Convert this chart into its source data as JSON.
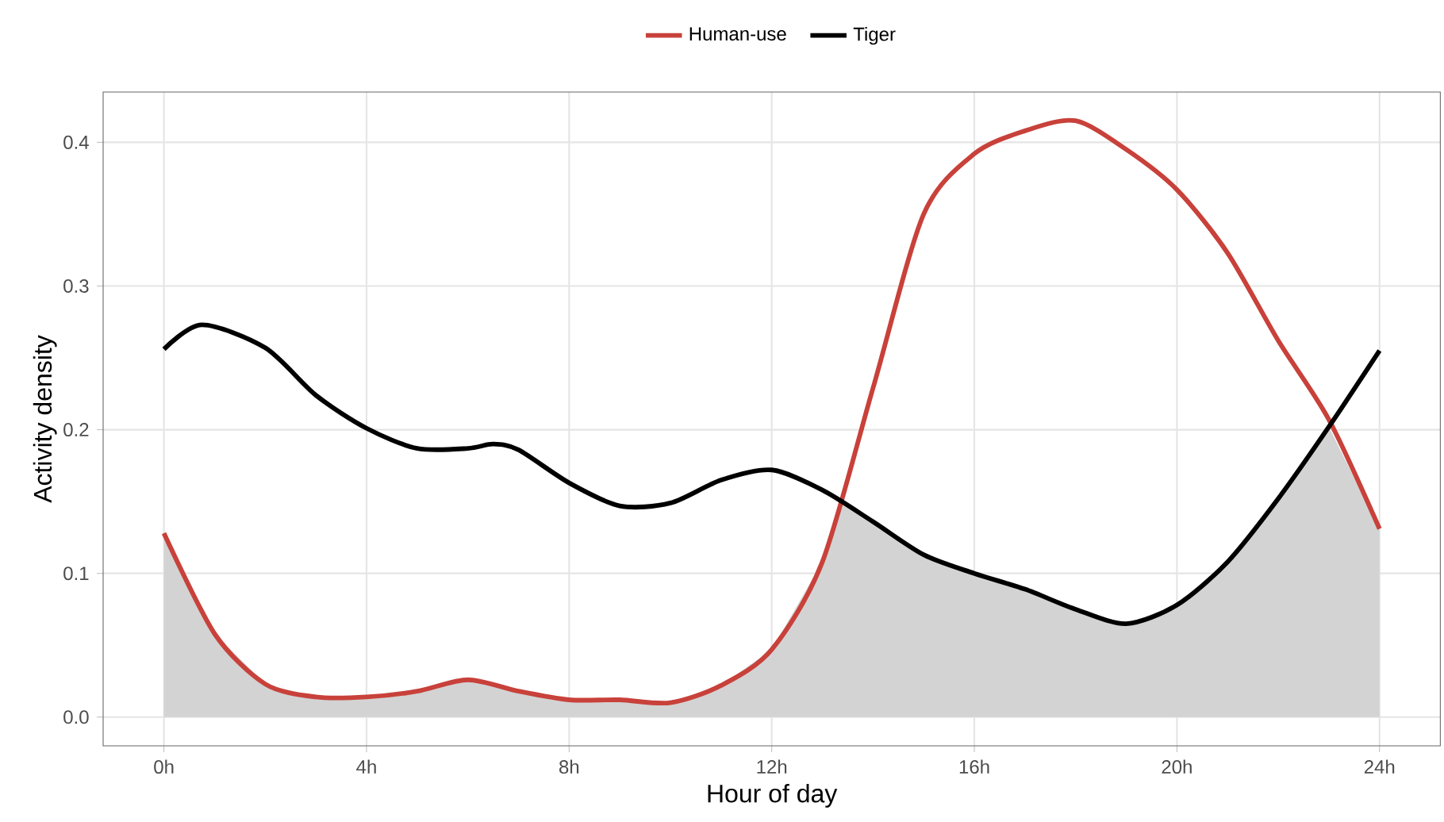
{
  "chart_data": {
    "type": "line",
    "xlabel": "Hour of day",
    "ylabel": "Activity density",
    "xlim": [
      -1.2,
      25.2
    ],
    "ylim": [
      -0.02,
      0.435
    ],
    "xticks": [
      {
        "value": 0,
        "label": "0h"
      },
      {
        "value": 4,
        "label": "4h"
      },
      {
        "value": 8,
        "label": "8h"
      },
      {
        "value": 12,
        "label": "12h"
      },
      {
        "value": 16,
        "label": "16h"
      },
      {
        "value": 20,
        "label": "20h"
      },
      {
        "value": 24,
        "label": "24h"
      }
    ],
    "yticks": [
      {
        "value": 0,
        "label": "0.0"
      },
      {
        "value": 0.1,
        "label": "0.1"
      },
      {
        "value": 0.2,
        "label": "0.2"
      },
      {
        "value": 0.3,
        "label": "0.3"
      },
      {
        "value": 0.4,
        "label": "0.4"
      }
    ],
    "grid": true,
    "legend": "top",
    "marker": "none",
    "line_style": "solid",
    "series": [
      {
        "type": "area",
        "color": "#d3d3d3",
        "x": [
          0,
          1,
          2,
          3,
          4,
          5,
          6,
          7,
          8,
          9,
          10,
          11,
          12,
          13,
          13.35,
          14,
          15,
          16,
          17,
          18,
          19,
          20,
          21,
          22,
          23,
          24
        ],
        "values": [
          0.128,
          0.058,
          0.023,
          0.014,
          0.014,
          0.018,
          0.026,
          0.018,
          0.012,
          0.012,
          0.01,
          0.022,
          0.047,
          0.108,
          0.15,
          0.136,
          0.113,
          0.1,
          0.089,
          0.075,
          0.065,
          0.078,
          0.108,
          0.152,
          0.202,
          0.131
        ]
      },
      {
        "name": "Human-use",
        "color": "#c8413a",
        "x": [
          0,
          1,
          2,
          3,
          4,
          5,
          6,
          7,
          8,
          9,
          10,
          11,
          12,
          13,
          14,
          15,
          16,
          17,
          18,
          19,
          20,
          21,
          22,
          23,
          24
        ],
        "values": [
          0.128,
          0.058,
          0.023,
          0.014,
          0.014,
          0.018,
          0.026,
          0.018,
          0.012,
          0.012,
          0.01,
          0.022,
          0.047,
          0.108,
          0.229,
          0.35,
          0.392,
          0.408,
          0.415,
          0.395,
          0.367,
          0.323,
          0.262,
          0.207,
          0.131
        ]
      },
      {
        "name": "Tiger",
        "color": "#000000",
        "x": [
          0,
          0.75,
          2,
          3,
          4,
          5,
          6,
          6.5,
          7,
          8,
          9,
          10,
          11,
          12,
          13,
          14,
          15,
          16,
          17,
          18,
          19,
          20,
          21,
          22,
          23,
          24
        ],
        "values": [
          0.256,
          0.273,
          0.257,
          0.224,
          0.201,
          0.187,
          0.187,
          0.19,
          0.186,
          0.163,
          0.147,
          0.149,
          0.165,
          0.172,
          0.158,
          0.136,
          0.113,
          0.1,
          0.089,
          0.075,
          0.065,
          0.078,
          0.108,
          0.152,
          0.202,
          0.255
        ]
      }
    ]
  }
}
